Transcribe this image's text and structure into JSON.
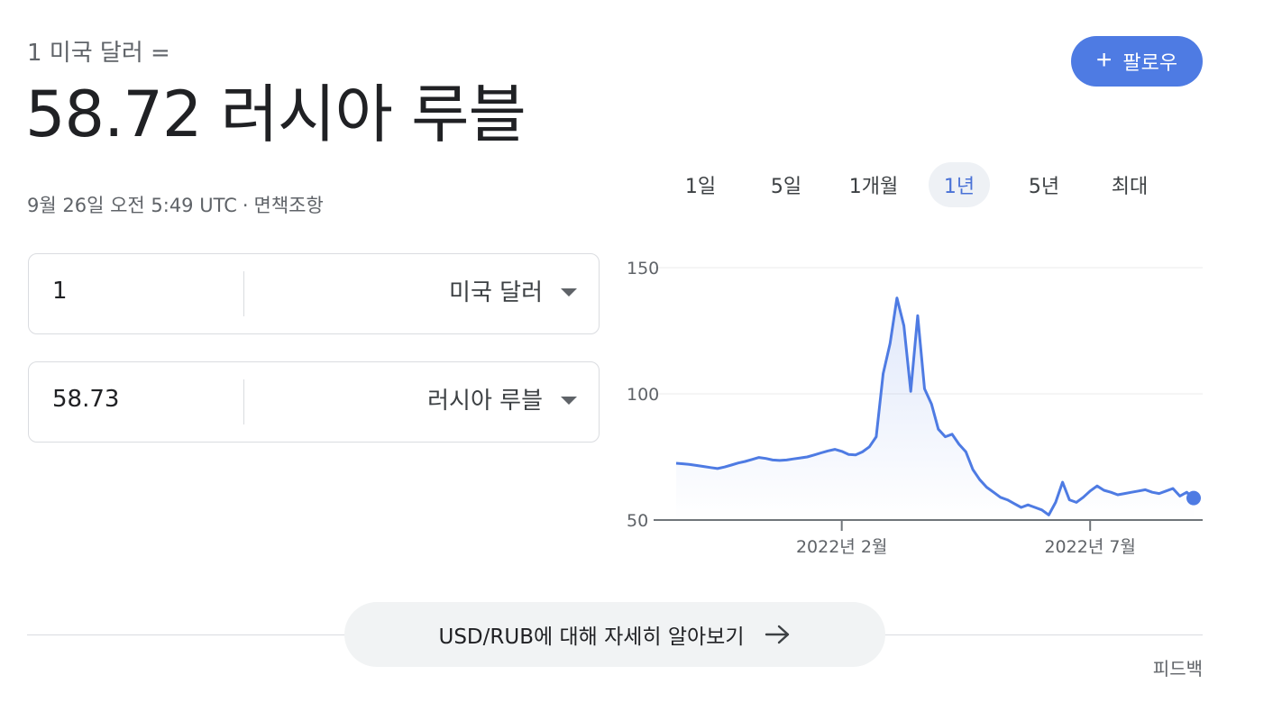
{
  "header": {
    "subtitle": "1 미국 달러 =",
    "value": "58.72 러시아 루블",
    "timestamp": "9월 26일 오전 5:49 UTC",
    "separator": "·",
    "disclaimer": "면책조항",
    "follow_label": "팔로우",
    "follow_icon": "plus-icon"
  },
  "range_tabs": [
    {
      "label": "1일",
      "active": false
    },
    {
      "label": "5일",
      "active": false
    },
    {
      "label": "1개월",
      "active": false
    },
    {
      "label": "1년",
      "active": true
    },
    {
      "label": "5년",
      "active": false
    },
    {
      "label": "최대",
      "active": false
    }
  ],
  "converter": {
    "from": {
      "amount": "1",
      "currency": "미국 달러"
    },
    "to": {
      "amount": "58.73",
      "currency": "러시아 루블"
    }
  },
  "chart_data": {
    "type": "area",
    "color": "#4e7be3",
    "ylim": [
      50,
      150
    ],
    "yticks": [
      "150",
      "100",
      "50"
    ],
    "xticks": [
      "2022년 2월",
      "2022년 7월"
    ],
    "grid": true,
    "series": [
      {
        "values": [
          72.5,
          72.3,
          72.0,
          71.6,
          71.2,
          70.8,
          70.4,
          71.0,
          71.8,
          72.6,
          73.2,
          74.0,
          74.8,
          74.4,
          73.8,
          73.6,
          73.8,
          74.2,
          74.6,
          75.0,
          75.8,
          76.6,
          77.4,
          78.0,
          77.2,
          76.0,
          75.8,
          77.0,
          79.0,
          83.0,
          108.0,
          120.0,
          138.0,
          127.0,
          101.0,
          131.0,
          102.0,
          96.0,
          86.0,
          83.0,
          84.0,
          80.0,
          77.0,
          70.0,
          66.0,
          63.0,
          61.0,
          59.0,
          58.0,
          56.5,
          55.0,
          56.0,
          55.0,
          54.0,
          52.0,
          57.0,
          65.0,
          58.0,
          57.0,
          59.0,
          61.5,
          63.5,
          61.8,
          61.0,
          60.0,
          60.5,
          61.0,
          61.5,
          62.0,
          61.0,
          60.5,
          61.5,
          62.5,
          59.5,
          61.0,
          58.7
        ]
      }
    ]
  },
  "more_info": {
    "label": "USD/RUB에 대해 자세히 알아보기",
    "icon": "arrow-right-icon"
  },
  "feedback": "피드백"
}
